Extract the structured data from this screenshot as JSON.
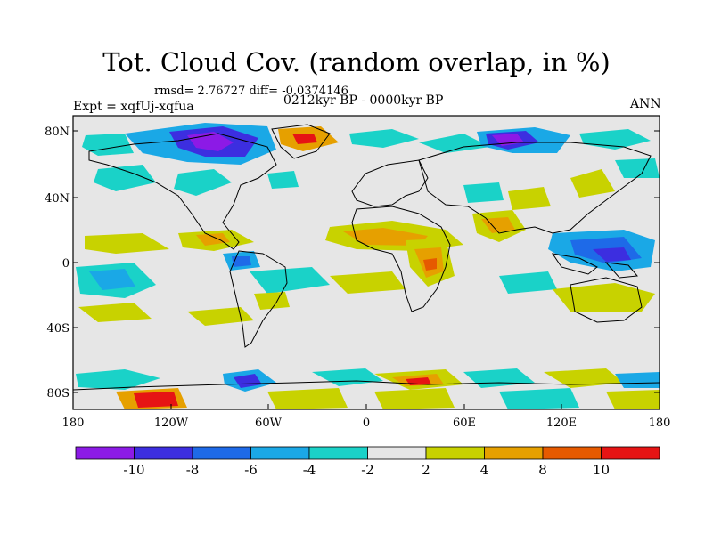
{
  "title": "Tot. Cloud Cov. (random overlap, in %)",
  "stats": "rmsd= 2.76727 diff= -0.0374146",
  "experiment": "Expt = xqfUj-xqfua",
  "period": "0212kyr BP - 0000kyr BP",
  "season": "ANN",
  "lat_ticks": [
    "80N",
    "40N",
    "0",
    "40S",
    "80S"
  ],
  "lon_ticks": [
    "180",
    "120W",
    "60W",
    "0",
    "60E",
    "120E",
    "180"
  ],
  "colorbar": {
    "labels": [
      "-10",
      "-8",
      "-6",
      "-4",
      "-2",
      "2",
      "4",
      "8",
      "10"
    ],
    "colors": [
      "#8c1ae6",
      "#3c2ee0",
      "#1e6ae8",
      "#1aa8e6",
      "#1ad2c8",
      "#e6e6e6",
      "#c8d200",
      "#e6a000",
      "#e65a00",
      "#e61414"
    ]
  },
  "colors": {
    "land_outline": "#000000",
    "background": "#e6e6e6"
  }
}
